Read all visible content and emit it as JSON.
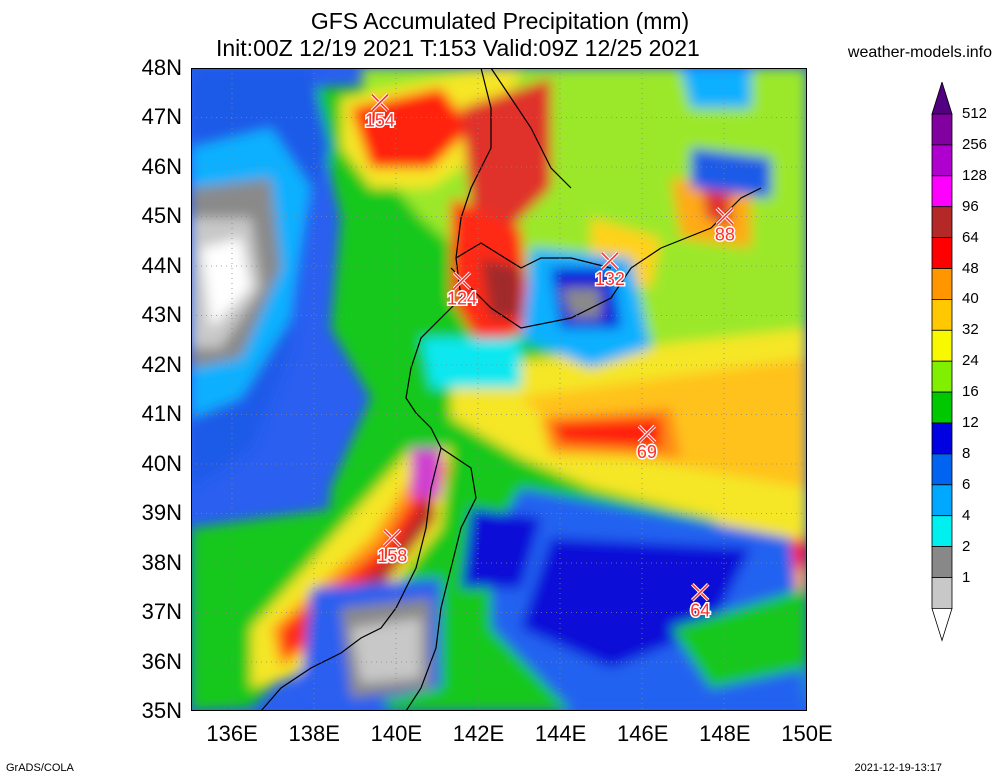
{
  "header": {
    "title_line1": "GFS Accumulated Precipitation (mm)",
    "title_line2": "Init:00Z 12/19 2021 T:153 Valid:09Z 12/25 2021",
    "site": "weather-models.info"
  },
  "map": {
    "lat_labels": [
      "48N",
      "47N",
      "46N",
      "45N",
      "44N",
      "43N",
      "42N",
      "41N",
      "40N",
      "39N",
      "38N",
      "37N",
      "36N",
      "35N"
    ],
    "lon_labels": [
      "136E",
      "138E",
      "140E",
      "142E",
      "144E",
      "146E",
      "148E",
      "150E"
    ],
    "extent": {
      "lon_min": 135,
      "lon_max": 150,
      "lat_min": 35,
      "lat_max": 48
    },
    "maxima": [
      {
        "label": "154",
        "lon": 139.6,
        "lat": 47.3
      },
      {
        "label": "124",
        "lon": 141.6,
        "lat": 43.7
      },
      {
        "label": "132",
        "lon": 145.2,
        "lat": 44.1
      },
      {
        "label": "88",
        "lon": 148.0,
        "lat": 45.0
      },
      {
        "label": "69",
        "lon": 146.1,
        "lat": 40.6
      },
      {
        "label": "158",
        "lon": 139.9,
        "lat": 38.5
      },
      {
        "label": "64",
        "lon": 147.4,
        "lat": 37.4
      }
    ]
  },
  "legend": {
    "levels": [
      "1",
      "2",
      "4",
      "6",
      "8",
      "12",
      "16",
      "24",
      "32",
      "40",
      "48",
      "64",
      "96",
      "128",
      "256",
      "512"
    ],
    "colors": [
      "#ffffff",
      "#c8c8c8",
      "#888888",
      "#00f0f0",
      "#00a8ff",
      "#0064f0",
      "#0000e0",
      "#00c800",
      "#80f000",
      "#f8f800",
      "#ffc800",
      "#ff9600",
      "#ff0000",
      "#b42828",
      "#ff00ff",
      "#b000d0",
      "#8000a0",
      "#500080"
    ]
  },
  "footer": {
    "left": "GrADS/COLA",
    "right": "2021-12-19-13:17"
  }
}
